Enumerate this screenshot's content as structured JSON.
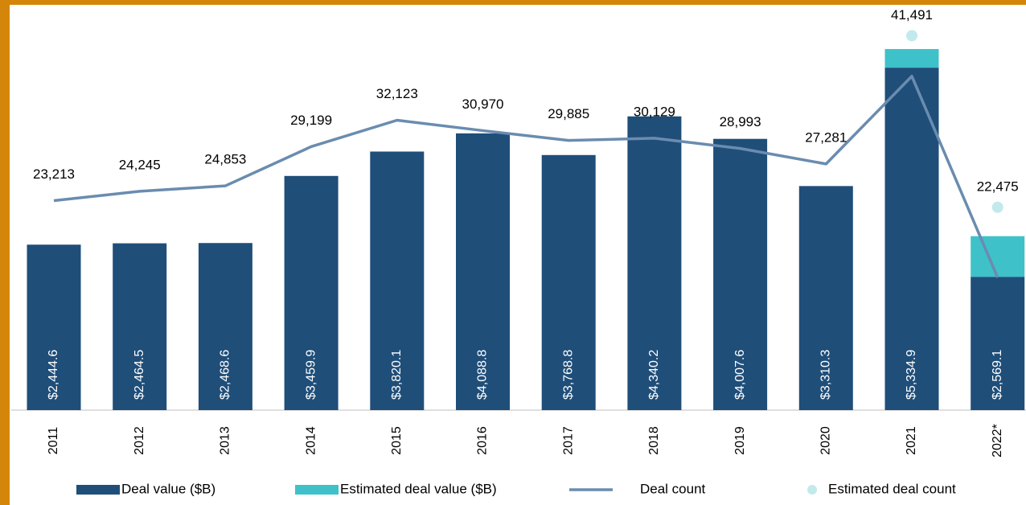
{
  "chart_data": {
    "type": "bar",
    "categories": [
      "2011",
      "2012",
      "2013",
      "2014",
      "2015",
      "2016",
      "2017",
      "2018",
      "2019",
      "2020",
      "2021",
      "2022*"
    ],
    "ylim": [
      0,
      6000
    ],
    "y2lim": [
      0,
      45000
    ],
    "total_labels": [
      "$2,444.6",
      "$2,464.5",
      "$2,468.6",
      "$3,459.9",
      "$3,820.1",
      "$4,088.8",
      "$3,768.8",
      "$4,340.2",
      "$4,007.6",
      "$3,310.3",
      "$5,334.9",
      "$2,569.1"
    ],
    "series": [
      {
        "name": "Deal value ($B)",
        "type": "bar",
        "color": "#1f4e79",
        "values": [
          2444.6,
          2464.5,
          2468.6,
          3459.9,
          3820.1,
          4088.8,
          3768.8,
          4340.2,
          4007.6,
          3310.3,
          5060,
          1970
        ]
      },
      {
        "name": "Estimated deal value ($B)",
        "type": "bar",
        "color": "#3fc1c9",
        "values": [
          null,
          null,
          null,
          null,
          null,
          null,
          null,
          null,
          null,
          null,
          275,
          600
        ]
      },
      {
        "name": "Deal count",
        "type": "line",
        "axis": "y2",
        "color": "#6a8caf",
        "values": [
          23213,
          24245,
          24853,
          29199,
          32123,
          30970,
          29885,
          30129,
          28993,
          27281,
          37000,
          14700
        ],
        "value_labels": [
          "23,213",
          "24,245",
          "24,853",
          "29,199",
          "32,123",
          "30,970",
          "29,885",
          "30,129",
          "28,993",
          "27,281",
          null,
          null
        ]
      },
      {
        "name": "Estimated deal count",
        "type": "scatter",
        "axis": "y2",
        "color": "#c2eaec",
        "values": [
          null,
          null,
          null,
          null,
          null,
          null,
          null,
          null,
          null,
          null,
          41491,
          22475
        ],
        "value_labels": [
          null,
          null,
          null,
          null,
          null,
          null,
          null,
          null,
          null,
          null,
          "41,491",
          "22,475"
        ]
      }
    ]
  }
}
